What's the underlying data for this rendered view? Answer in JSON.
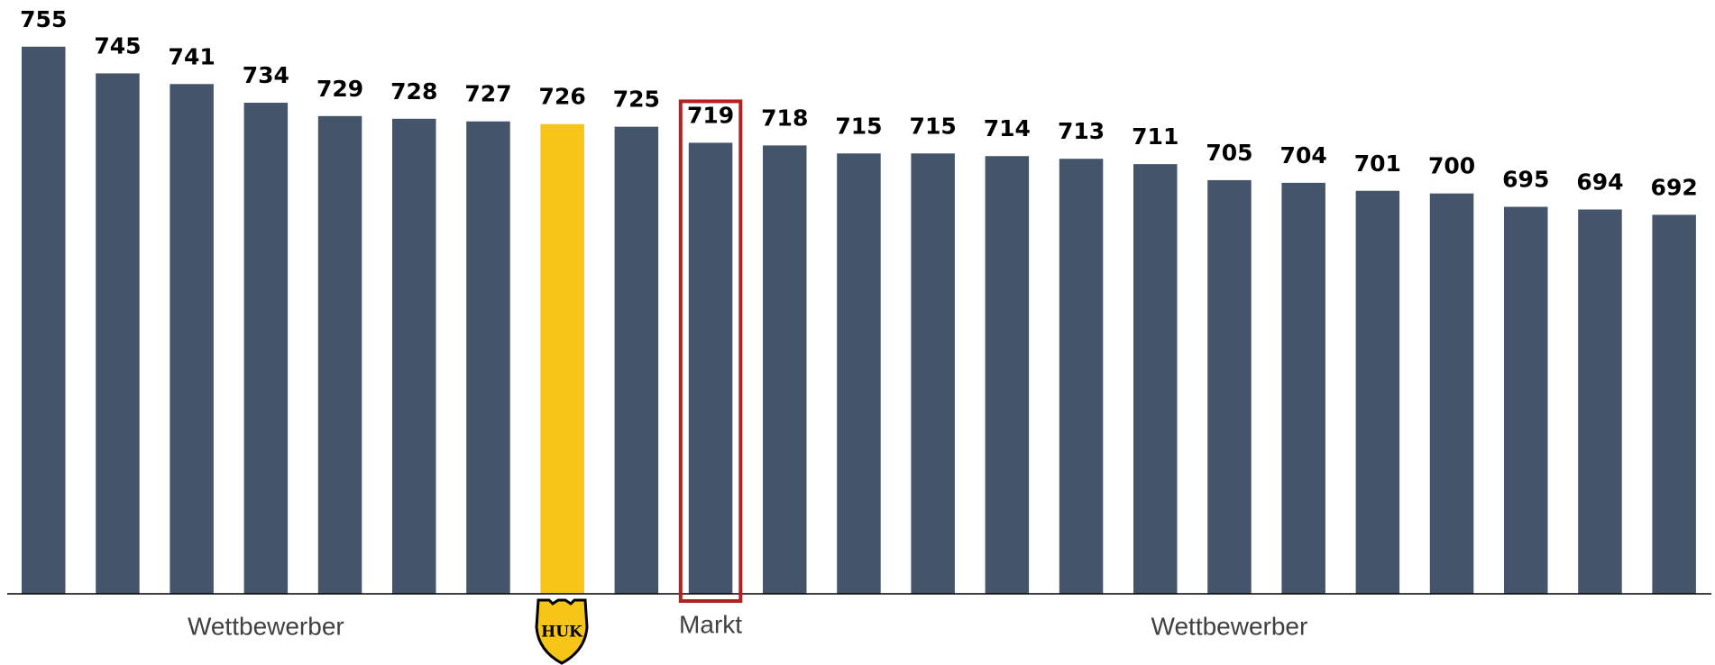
{
  "chart_data": {
    "type": "bar",
    "categories": [
      null,
      null,
      null,
      null,
      null,
      null,
      null,
      "HUK",
      null,
      "Markt",
      null,
      null,
      null,
      null,
      null,
      null,
      null,
      null,
      null,
      null,
      null,
      null,
      null
    ],
    "values": [
      755,
      745,
      741,
      734,
      729,
      728,
      727,
      726,
      725,
      719,
      718,
      715,
      715,
      714,
      713,
      711,
      705,
      704,
      701,
      700,
      695,
      694,
      692
    ],
    "color": "#44546a",
    "highlight": {
      "index": 7,
      "color": "#f5c518"
    },
    "boxed": {
      "index": 9,
      "color": "#b22222"
    },
    "groups": [
      {
        "label": "Wettbewerber",
        "from": 0,
        "to": 6
      },
      {
        "label": "Wettbewerber",
        "from": 10,
        "to": 22
      }
    ],
    "ylim": [
      550,
      760
    ]
  }
}
